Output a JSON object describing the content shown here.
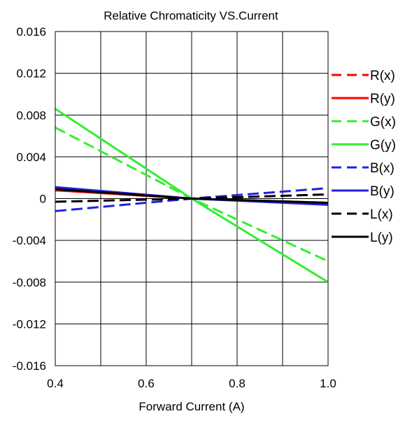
{
  "chart_data": {
    "type": "line",
    "title": "Relative Chromaticity VS.Current",
    "xlabel": "Forward Current (A)",
    "ylabel": "",
    "xlim": [
      0.4,
      1.0
    ],
    "ylim": [
      -0.016,
      0.016
    ],
    "x_ticks": [
      "0.4",
      "0.6",
      "0.8",
      "1.0"
    ],
    "y_ticks": [
      "0.016",
      "0.012",
      "0.008",
      "0.004",
      "0",
      "-0.004",
      "-0.008",
      "-0.012",
      "-0.016"
    ],
    "grid": true,
    "legend_position": "right",
    "series": [
      {
        "name": "R(x)",
        "color": "#ff0000",
        "dash": "dashed",
        "x": [
          0.4,
          0.7,
          1.0
        ],
        "values": [
          0.0008,
          0.0,
          -0.0004
        ]
      },
      {
        "name": "R(y)",
        "color": "#ff0000",
        "dash": "solid",
        "x": [
          0.4,
          0.7,
          1.0
        ],
        "values": [
          0.0008,
          0.0,
          -0.0005
        ]
      },
      {
        "name": "G(x)",
        "color": "#33ee33",
        "dash": "dashed",
        "x": [
          0.4,
          0.7,
          1.0
        ],
        "values": [
          0.0068,
          0.0,
          -0.006
        ]
      },
      {
        "name": "G(y)",
        "color": "#33ee33",
        "dash": "solid",
        "x": [
          0.4,
          0.7,
          1.0
        ],
        "values": [
          0.0086,
          0.0,
          -0.008
        ]
      },
      {
        "name": "B(x)",
        "color": "#2222dd",
        "dash": "dashed",
        "x": [
          0.4,
          0.7,
          1.0
        ],
        "values": [
          -0.0012,
          0.0,
          0.001
        ]
      },
      {
        "name": "B(y)",
        "color": "#2222dd",
        "dash": "solid",
        "x": [
          0.4,
          0.7,
          1.0
        ],
        "values": [
          0.0011,
          0.0,
          -0.0006
        ]
      },
      {
        "name": "L(x)",
        "color": "#000000",
        "dash": "dashed",
        "x": [
          0.4,
          0.7,
          1.0
        ],
        "values": [
          -0.0003,
          0.0,
          0.0004
        ]
      },
      {
        "name": "L(y)",
        "color": "#000000",
        "dash": "solid",
        "x": [
          0.4,
          0.7,
          1.0
        ],
        "values": [
          0.0009,
          0.0,
          -0.0004
        ]
      }
    ]
  }
}
